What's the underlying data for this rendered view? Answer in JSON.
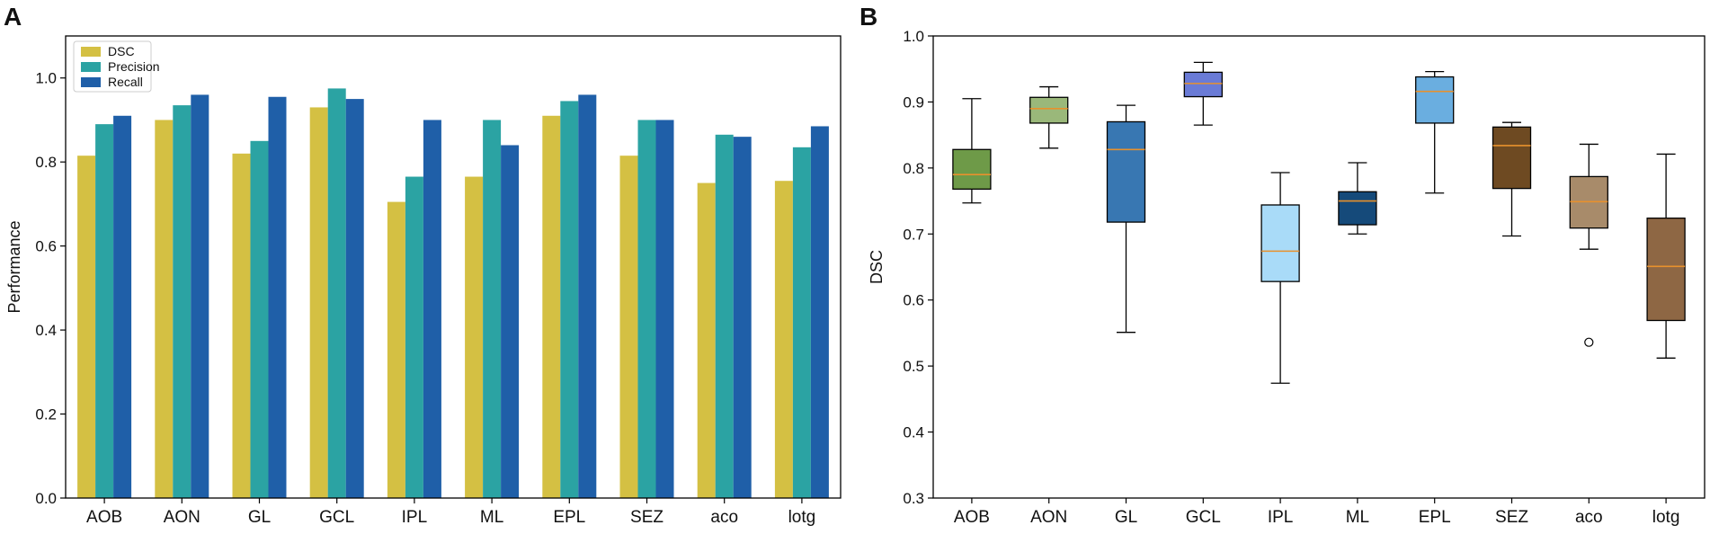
{
  "chart_data": [
    {
      "panel": "A",
      "type": "bar",
      "ylabel": "Performance",
      "ylim": [
        0,
        1.1
      ],
      "yticks": [
        "0.0",
        "0.2",
        "0.4",
        "0.6",
        "0.8",
        "1.0"
      ],
      "legend_position": "top-left",
      "categories": [
        "AOB",
        "AON",
        "GL",
        "GCL",
        "IPL",
        "ML",
        "EPL",
        "SEZ",
        "aco",
        "lotg"
      ],
      "series": [
        {
          "name": "DSC",
          "color": "#d4c043",
          "values": [
            0.815,
            0.9,
            0.82,
            0.93,
            0.705,
            0.765,
            0.91,
            0.815,
            0.75,
            0.755
          ]
        },
        {
          "name": "Precision",
          "color": "#2ba3a3",
          "values": [
            0.89,
            0.935,
            0.85,
            0.975,
            0.765,
            0.9,
            0.945,
            0.9,
            0.865,
            0.835
          ]
        },
        {
          "name": "Recall",
          "color": "#1f5fa8",
          "values": [
            0.91,
            0.96,
            0.955,
            0.95,
            0.9,
            0.84,
            0.96,
            0.9,
            0.86,
            0.885
          ]
        }
      ]
    },
    {
      "panel": "B",
      "type": "box",
      "ylabel": "DSC",
      "ylim": [
        0.3,
        1.0
      ],
      "yticks": [
        "0.3",
        "0.4",
        "0.5",
        "0.6",
        "0.7",
        "0.8",
        "0.9",
        "1.0"
      ],
      "median_color": "#e8912d",
      "categories": [
        "AOB",
        "AON",
        "GL",
        "GCL",
        "IPL",
        "ML",
        "EPL",
        "SEZ",
        "aco",
        "lotg"
      ],
      "boxes": [
        {
          "label": "AOB",
          "whisker_low": 0.747,
          "q1": 0.768,
          "median": 0.79,
          "q3": 0.828,
          "whisker_high": 0.905,
          "outliers": [],
          "color": "#6e9a48"
        },
        {
          "label": "AON",
          "whisker_low": 0.83,
          "q1": 0.868,
          "median": 0.89,
          "q3": 0.907,
          "whisker_high": 0.923,
          "outliers": [],
          "color": "#9ab87a"
        },
        {
          "label": "GL",
          "whisker_low": 0.551,
          "q1": 0.718,
          "median": 0.828,
          "q3": 0.87,
          "whisker_high": 0.895,
          "outliers": [],
          "color": "#3877b2"
        },
        {
          "label": "GCL",
          "whisker_low": 0.865,
          "q1": 0.908,
          "median": 0.928,
          "q3": 0.945,
          "whisker_high": 0.96,
          "outliers": [],
          "color": "#6a7bd6"
        },
        {
          "label": "IPL",
          "whisker_low": 0.474,
          "q1": 0.628,
          "median": 0.674,
          "q3": 0.744,
          "whisker_high": 0.793,
          "outliers": [],
          "color": "#a9dbf8"
        },
        {
          "label": "ML",
          "whisker_low": 0.7,
          "q1": 0.714,
          "median": 0.75,
          "q3": 0.764,
          "whisker_high": 0.808,
          "outliers": [],
          "color": "#154a7a"
        },
        {
          "label": "EPL",
          "whisker_low": 0.762,
          "q1": 0.868,
          "median": 0.916,
          "q3": 0.938,
          "whisker_high": 0.946,
          "outliers": [],
          "color": "#6aaee0"
        },
        {
          "label": "SEZ",
          "whisker_low": 0.697,
          "q1": 0.769,
          "median": 0.834,
          "q3": 0.862,
          "whisker_high": 0.869,
          "outliers": [],
          "color": "#6e4a22"
        },
        {
          "label": "aco",
          "whisker_low": 0.677,
          "q1": 0.709,
          "median": 0.749,
          "q3": 0.787,
          "whisker_high": 0.836,
          "outliers": [
            0.536
          ],
          "color": "#a88b6a"
        },
        {
          "label": "lotg",
          "whisker_low": 0.512,
          "q1": 0.569,
          "median": 0.651,
          "q3": 0.724,
          "whisker_high": 0.821,
          "outliers": [],
          "color": "#8e6744"
        }
      ]
    }
  ]
}
